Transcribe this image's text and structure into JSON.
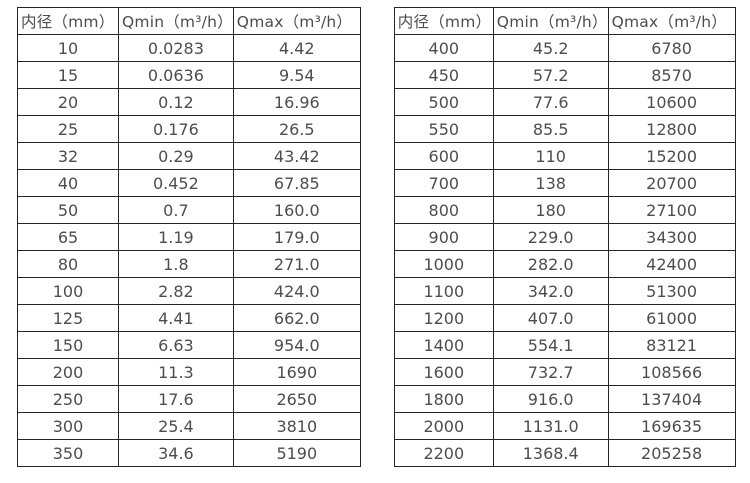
{
  "colors": {
    "background": "#ffffff",
    "table_border": "#262626",
    "table_text": "#4d4d4d"
  },
  "chart_data": [
    {
      "type": "table",
      "title": "",
      "columns": [
        "内径（mm）",
        "Qmin（m³/h）",
        "Qmax（m³/h）"
      ],
      "rows": [
        [
          "10",
          "0.0283",
          "4.42"
        ],
        [
          "15",
          "0.0636",
          "9.54"
        ],
        [
          "20",
          "0.12",
          "16.96"
        ],
        [
          "25",
          "0.176",
          "26.5"
        ],
        [
          "32",
          "0.29",
          "43.42"
        ],
        [
          "40",
          "0.452",
          "67.85"
        ],
        [
          "50",
          "0.7",
          "160.0"
        ],
        [
          "65",
          "1.19",
          "179.0"
        ],
        [
          "80",
          "1.8",
          "271.0"
        ],
        [
          "100",
          "2.82",
          "424.0"
        ],
        [
          "125",
          "4.41",
          "662.0"
        ],
        [
          "150",
          "6.63",
          "954.0"
        ],
        [
          "200",
          "11.3",
          "1690"
        ],
        [
          "250",
          "17.6",
          "2650"
        ],
        [
          "300",
          "25.4",
          "3810"
        ],
        [
          "350",
          "34.6",
          "5190"
        ]
      ]
    },
    {
      "type": "table",
      "title": "",
      "columns": [
        "内径（mm）",
        "Qmin（m³/h）",
        "Qmax（m³/h）"
      ],
      "rows": [
        [
          "400",
          "45.2",
          "6780"
        ],
        [
          "450",
          "57.2",
          "8570"
        ],
        [
          "500",
          "77.6",
          "10600"
        ],
        [
          "550",
          "85.5",
          "12800"
        ],
        [
          "600",
          "110",
          "15200"
        ],
        [
          "700",
          "138",
          "20700"
        ],
        [
          "800",
          "180",
          "27100"
        ],
        [
          "900",
          "229.0",
          "34300"
        ],
        [
          "1000",
          "282.0",
          "42400"
        ],
        [
          "1100",
          "342.0",
          "51300"
        ],
        [
          "1200",
          "407.0",
          "61000"
        ],
        [
          "1400",
          "554.1",
          "83121"
        ],
        [
          "1600",
          "732.7",
          "108566"
        ],
        [
          "1800",
          "916.0",
          "137404"
        ],
        [
          "2000",
          "1131.0",
          "169635"
        ],
        [
          "2200",
          "1368.4",
          "205258"
        ]
      ]
    }
  ]
}
